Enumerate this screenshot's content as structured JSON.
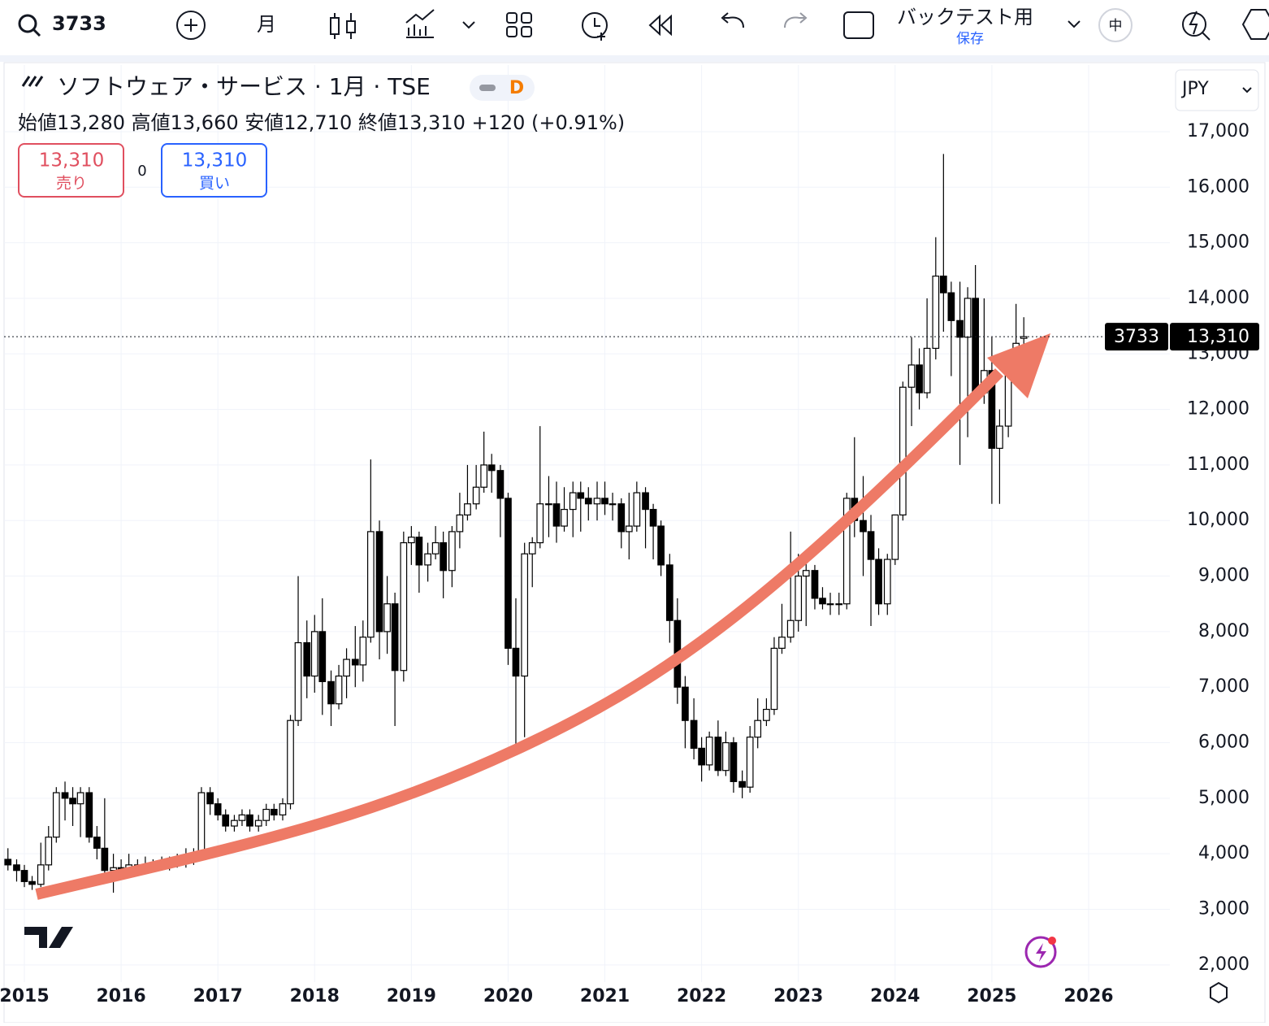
{
  "ui": {
    "symbol": "3733",
    "interval": "月",
    "backtest": "バックテスト用",
    "save": "保存",
    "size": "中",
    "legend_title": "ソフトウェア・サービス · 1月 · TSE",
    "legend_badge": "D",
    "open_label": "始値",
    "open": "13,280",
    "high_label": "高値",
    "high": "13,660",
    "low_label": "安値",
    "low": "12,710",
    "close_label": "終値",
    "close": "13,310",
    "change": "+120 (+0.91%)",
    "sell_price": "13,310",
    "sell": "売り",
    "spread": "0",
    "buy_price": "13,310",
    "buy": "買い",
    "currency": "JPY",
    "price_tag_symbol": "3733",
    "price_tag": "13,310"
  },
  "chart_data": {
    "type": "candlestick",
    "last_value": 13310,
    "xlim": [
      2014.79,
      2026.84
    ],
    "xticks": [
      2015,
      2016,
      2017,
      2018,
      2019,
      2020,
      2021,
      2022,
      2023,
      2024,
      2025,
      2026
    ],
    "ylim": [
      1690,
      18200
    ],
    "yticks": [
      {
        "value": 2000,
        "label": "2,000"
      },
      {
        "value": 3000,
        "label": "3,000"
      },
      {
        "value": 4000,
        "label": "4,000"
      },
      {
        "value": 5000,
        "label": "5,000"
      },
      {
        "value": 6000,
        "label": "6,000"
      },
      {
        "value": 7000,
        "label": "7,000"
      },
      {
        "value": 8000,
        "label": "8,000"
      },
      {
        "value": 9000,
        "label": "9,000"
      },
      {
        "value": 10000,
        "label": "10,000"
      },
      {
        "value": 11000,
        "label": "11,000"
      },
      {
        "value": 12000,
        "label": "12,000"
      },
      {
        "value": 13000,
        "label": "13,000"
      },
      {
        "value": 14000,
        "label": "14,000"
      },
      {
        "value": 15000,
        "label": "15,000"
      },
      {
        "value": 16000,
        "label": "16,000"
      },
      {
        "value": 17000,
        "label": "17,000"
      }
    ],
    "grid": true,
    "up_color": "#ffffff",
    "down_color": "#000000",
    "x": [
      2014.83,
      2014.92,
      2015.0,
      2015.08,
      2015.17,
      2015.25,
      2015.33,
      2015.42,
      2015.5,
      2015.58,
      2015.67,
      2015.75,
      2015.83,
      2015.92,
      2016.0,
      2016.08,
      2016.17,
      2016.25,
      2016.33,
      2016.42,
      2016.5,
      2016.58,
      2016.67,
      2016.75,
      2016.83,
      2016.92,
      2017.0,
      2017.08,
      2017.17,
      2017.25,
      2017.33,
      2017.42,
      2017.5,
      2017.58,
      2017.67,
      2017.75,
      2017.83,
      2017.92,
      2018.0,
      2018.08,
      2018.17,
      2018.25,
      2018.33,
      2018.42,
      2018.5,
      2018.58,
      2018.67,
      2018.75,
      2018.83,
      2018.92,
      2019.0,
      2019.08,
      2019.17,
      2019.25,
      2019.33,
      2019.42,
      2019.5,
      2019.58,
      2019.67,
      2019.75,
      2019.83,
      2019.92,
      2020.0,
      2020.08,
      2020.17,
      2020.25,
      2020.33,
      2020.42,
      2020.5,
      2020.58,
      2020.67,
      2020.75,
      2020.83,
      2020.92,
      2021.0,
      2021.08,
      2021.17,
      2021.25,
      2021.33,
      2021.42,
      2021.5,
      2021.58,
      2021.67,
      2021.75,
      2021.83,
      2021.92,
      2022.0,
      2022.08,
      2022.17,
      2022.25,
      2022.33,
      2022.42,
      2022.5,
      2022.58,
      2022.67,
      2022.75,
      2022.83,
      2022.92,
      2023.0,
      2023.08,
      2023.17,
      2023.25,
      2023.33,
      2023.42,
      2023.5,
      2023.58,
      2023.67,
      2023.75,
      2023.83,
      2023.92,
      2024.0,
      2024.08,
      2024.17,
      2024.25,
      2024.33,
      2024.42,
      2024.5,
      2024.58,
      2024.67,
      2024.75,
      2024.83,
      2024.92,
      2025.0,
      2025.08,
      2025.17,
      2025.25,
      2025.33
    ],
    "ohlc": [
      [
        3900,
        4100,
        3700,
        3800
      ],
      [
        3800,
        3900,
        3500,
        3700
      ],
      [
        3700,
        3800,
        3400,
        3500
      ],
      [
        3500,
        3600,
        3350,
        3450
      ],
      [
        3450,
        4200,
        3400,
        3800
      ],
      [
        3800,
        4500,
        3700,
        4300
      ],
      [
        4300,
        5200,
        4200,
        5100
      ],
      [
        5100,
        5300,
        4600,
        5000
      ],
      [
        5000,
        5200,
        4500,
        4900
      ],
      [
        4900,
        5200,
        4300,
        5100
      ],
      [
        5100,
        5200,
        4200,
        4300
      ],
      [
        4300,
        4500,
        3900,
        4100
      ],
      [
        4100,
        5000,
        3500,
        3700
      ],
      [
        3700,
        4000,
        3300,
        3750
      ],
      [
        3750,
        3900,
        3600,
        3700
      ],
      [
        3700,
        4000,
        3600,
        3800
      ],
      [
        3800,
        3900,
        3650,
        3750
      ],
      [
        3750,
        3950,
        3650,
        3800
      ],
      [
        3800,
        3900,
        3700,
        3800
      ],
      [
        3800,
        3950,
        3700,
        3800
      ],
      [
        3800,
        3950,
        3700,
        3850
      ],
      [
        3850,
        4000,
        3750,
        3850
      ],
      [
        3850,
        4100,
        3750,
        3900
      ],
      [
        3900,
        4100,
        3800,
        4000
      ],
      [
        4000,
        5200,
        3900,
        5100
      ],
      [
        5100,
        5200,
        4700,
        4900
      ],
      [
        4900,
        5000,
        4600,
        4700
      ],
      [
        4700,
        4800,
        4400,
        4500
      ],
      [
        4500,
        4700,
        4400,
        4600
      ],
      [
        4600,
        4800,
        4500,
        4700
      ],
      [
        4700,
        4800,
        4400,
        4500
      ],
      [
        4500,
        4700,
        4400,
        4600
      ],
      [
        4600,
        4900,
        4500,
        4800
      ],
      [
        4800,
        4900,
        4600,
        4700
      ],
      [
        4700,
        5000,
        4600,
        4900
      ],
      [
        4900,
        6500,
        4800,
        6400
      ],
      [
        6400,
        9000,
        6300,
        7800
      ],
      [
        7800,
        8200,
        6800,
        7200
      ],
      [
        7200,
        8300,
        6900,
        8000
      ],
      [
        8000,
        8600,
        6500,
        7100
      ],
      [
        7100,
        7300,
        6300,
        6700
      ],
      [
        6700,
        7400,
        6600,
        7200
      ],
      [
        7200,
        7700,
        6800,
        7500
      ],
      [
        7500,
        8100,
        7000,
        7400
      ],
      [
        7400,
        8200,
        7100,
        7900
      ],
      [
        7900,
        11100,
        7800,
        9800
      ],
      [
        9800,
        10000,
        7500,
        8000
      ],
      [
        8000,
        9000,
        7600,
        8500
      ],
      [
        8500,
        8700,
        6300,
        7300
      ],
      [
        7300,
        9800,
        7100,
        9600
      ],
      [
        9600,
        9900,
        9200,
        9700
      ],
      [
        9700,
        9800,
        8700,
        9200
      ],
      [
        9200,
        9600,
        8900,
        9400
      ],
      [
        9400,
        9900,
        9300,
        9600
      ],
      [
        9600,
        9800,
        8600,
        9100
      ],
      [
        9100,
        9900,
        8800,
        9800
      ],
      [
        9800,
        10500,
        9500,
        10100
      ],
      [
        10100,
        11000,
        10000,
        10300
      ],
      [
        10300,
        11000,
        10200,
        10600
      ],
      [
        10600,
        11600,
        10500,
        11000
      ],
      [
        11000,
        11200,
        10500,
        10900
      ],
      [
        10900,
        11000,
        9700,
        10400
      ],
      [
        10400,
        10500,
        7400,
        7700
      ],
      [
        7700,
        8600,
        5800,
        7200
      ],
      [
        7200,
        9600,
        6100,
        9400
      ],
      [
        9400,
        9700,
        8800,
        9600
      ],
      [
        9600,
        11700,
        9500,
        10300
      ],
      [
        10300,
        10800,
        9700,
        10300
      ],
      [
        10300,
        10700,
        9600,
        9900
      ],
      [
        9900,
        10600,
        9800,
        10200
      ],
      [
        10200,
        10700,
        9700,
        10500
      ],
      [
        10500,
        10700,
        9800,
        10400
      ],
      [
        10400,
        10600,
        10000,
        10300
      ],
      [
        10300,
        10700,
        10000,
        10400
      ],
      [
        10400,
        10700,
        10100,
        10300
      ],
      [
        10300,
        10500,
        10000,
        10300
      ],
      [
        10300,
        10400,
        9500,
        9800
      ],
      [
        9800,
        10500,
        9300,
        9900
      ],
      [
        9900,
        10700,
        9800,
        10500
      ],
      [
        10500,
        10600,
        9500,
        10200
      ],
      [
        10200,
        10300,
        9300,
        9900
      ],
      [
        9900,
        10000,
        9000,
        9200
      ],
      [
        9200,
        9400,
        7800,
        8200
      ],
      [
        8200,
        8600,
        6700,
        7000
      ],
      [
        7000,
        7200,
        5900,
        6400
      ],
      [
        6400,
        6800,
        5700,
        5900
      ],
      [
        5900,
        6100,
        5300,
        5600
      ],
      [
        5600,
        6200,
        5500,
        6100
      ],
      [
        6100,
        6400,
        5400,
        5500
      ],
      [
        5500,
        6200,
        5400,
        6000
      ],
      [
        6000,
        6100,
        5100,
        5300
      ],
      [
        5300,
        5500,
        5000,
        5200
      ],
      [
        5200,
        6300,
        5100,
        6100
      ],
      [
        6100,
        6800,
        5900,
        6400
      ],
      [
        6400,
        6800,
        6300,
        6600
      ],
      [
        6600,
        7900,
        6500,
        7700
      ],
      [
        7700,
        8500,
        7600,
        7900
      ],
      [
        7900,
        9800,
        7800,
        8200
      ],
      [
        8200,
        9400,
        8000,
        9000
      ],
      [
        9000,
        9300,
        8100,
        9100
      ],
      [
        9100,
        9200,
        8400,
        8600
      ],
      [
        8600,
        8800,
        8400,
        8500
      ],
      [
        8500,
        8700,
        8300,
        8500
      ],
      [
        8500,
        8700,
        8300,
        8500
      ],
      [
        8500,
        10500,
        8400,
        10400
      ],
      [
        10400,
        11500,
        9700,
        10000
      ],
      [
        10000,
        10800,
        9000,
        9800
      ],
      [
        9800,
        10100,
        8100,
        9300
      ],
      [
        9300,
        9500,
        8300,
        8500
      ],
      [
        8500,
        9400,
        8300,
        9300
      ],
      [
        9300,
        10100,
        9200,
        10100
      ],
      [
        10100,
        12500,
        10000,
        12400
      ],
      [
        12400,
        13300,
        11700,
        12800
      ],
      [
        12800,
        13100,
        12000,
        12300
      ],
      [
        12300,
        14000,
        12200,
        13100
      ],
      [
        13100,
        15100,
        12900,
        14400
      ],
      [
        14400,
        16600,
        13400,
        14100
      ],
      [
        14100,
        14300,
        12600,
        13600
      ],
      [
        13600,
        14300,
        11000,
        13300
      ],
      [
        13300,
        14200,
        11500,
        14000
      ],
      [
        14000,
        14600,
        12200,
        12300
      ],
      [
        12300,
        14000,
        12100,
        12700
      ],
      [
        12700,
        13300,
        10300,
        11300
      ],
      [
        11300,
        12000,
        10300,
        11700
      ],
      [
        11700,
        12900,
        11500,
        12800
      ],
      [
        12800,
        13900,
        12500,
        13190
      ],
      [
        13280,
        13660,
        12710,
        13310
      ]
    ]
  }
}
